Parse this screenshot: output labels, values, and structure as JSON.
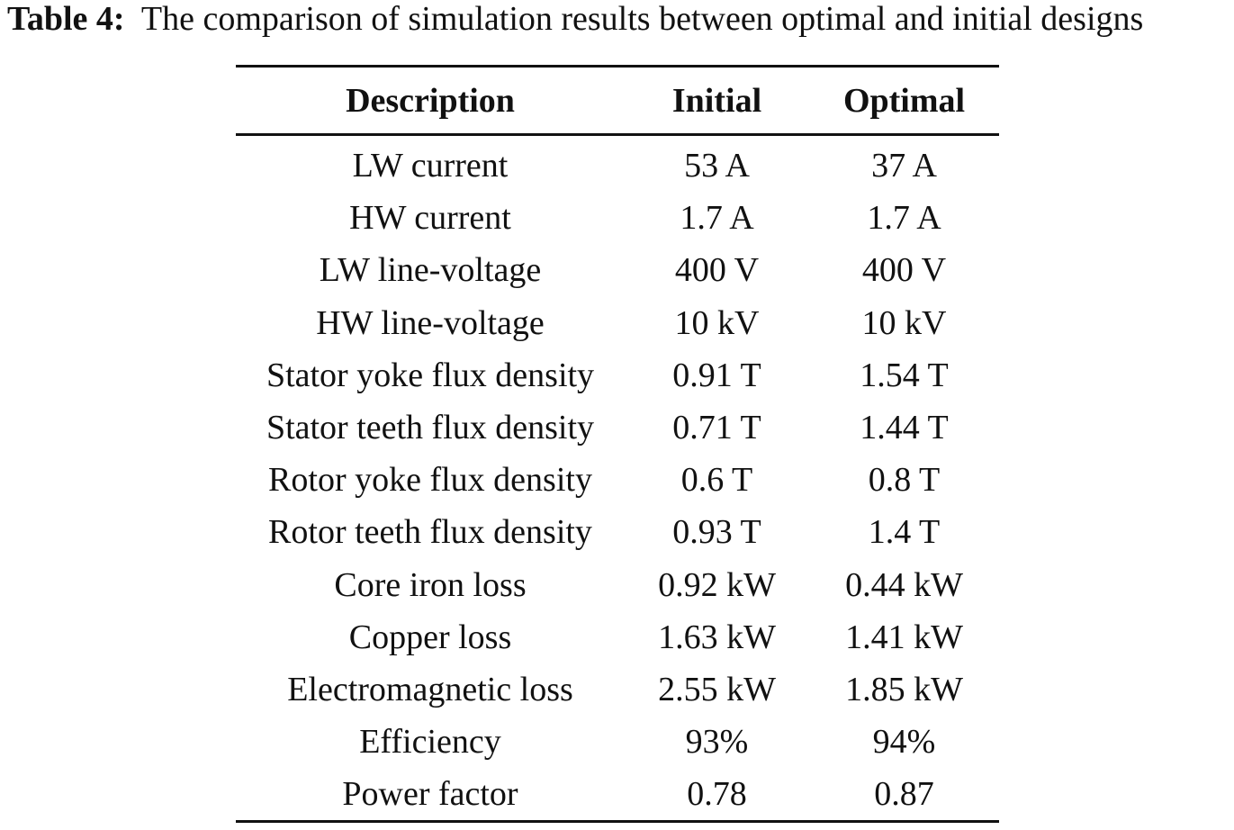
{
  "caption": {
    "label": "Table 4:",
    "text": "The comparison of simulation results between optimal and initial designs"
  },
  "table": {
    "headers": [
      "Description",
      "Initial",
      "Optimal"
    ],
    "rows": [
      [
        "LW current",
        "53 A",
        "37 A"
      ],
      [
        "HW current",
        "1.7 A",
        "1.7 A"
      ],
      [
        "LW line-voltage",
        "400 V",
        "400 V"
      ],
      [
        "HW line-voltage",
        "10 kV",
        "10 kV"
      ],
      [
        "Stator yoke flux density",
        "0.91 T",
        "1.54 T"
      ],
      [
        "Stator teeth flux density",
        "0.71 T",
        "1.44 T"
      ],
      [
        "Rotor yoke flux density",
        "0.6 T",
        "0.8 T"
      ],
      [
        "Rotor teeth flux density",
        "0.93 T",
        "1.4 T"
      ],
      [
        "Core iron loss",
        "0.92 kW",
        "0.44 kW"
      ],
      [
        "Copper loss",
        "1.63 kW",
        "1.41 kW"
      ],
      [
        "Electromagnetic loss",
        "2.55 kW",
        "1.85 kW"
      ],
      [
        "Efficiency",
        "93%",
        "94%"
      ],
      [
        "Power factor",
        "0.78",
        "0.87"
      ]
    ]
  }
}
